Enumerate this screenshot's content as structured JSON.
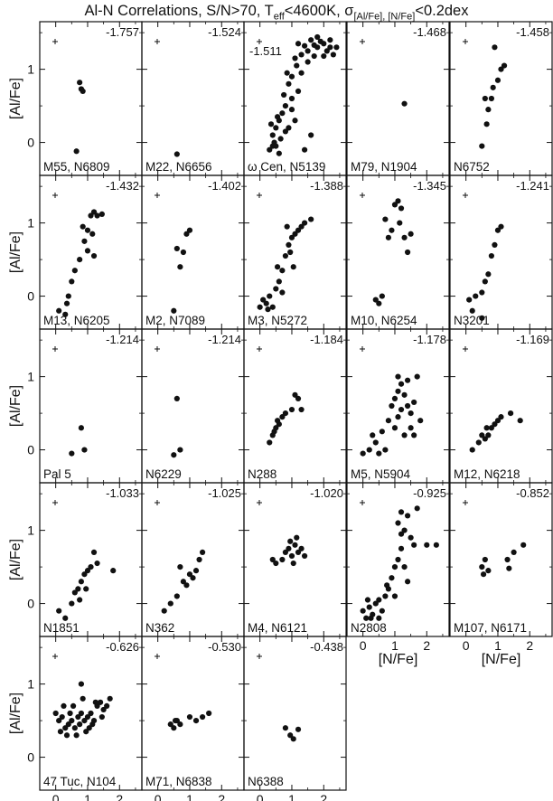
{
  "figure": {
    "title_main": "Al-N Correlations, S/N>70, T",
    "title_teff_sub": "eff",
    "title_mid": "<4600K, σ",
    "title_sigma_sub": "[Al/Fe], [N/Fe]",
    "title_end": "<0.2dex",
    "ylabel": "[Al/Fe]",
    "xlabel": "[N/Fe]",
    "xticks": [
      0,
      1,
      2
    ],
    "yticks": [
      0,
      1
    ],
    "xlim": [
      -0.5,
      2.7
    ],
    "ylim": [
      -0.45,
      1.65
    ]
  },
  "chart_data": [
    {
      "type": "scatter",
      "name": "M55, N6809",
      "label": "M55, N6809",
      "value_label": "-1.757",
      "points": [
        [
          0.75,
          0.82
        ],
        [
          0.8,
          0.73
        ],
        [
          0.85,
          0.7
        ],
        [
          0.65,
          -0.12
        ]
      ]
    },
    {
      "type": "scatter",
      "name": "M22, N6656",
      "label": "M22, N6656",
      "value_label": "-1.524",
      "points": [
        [
          0.6,
          -0.16
        ]
      ]
    },
    {
      "type": "scatter",
      "name": "ω Cen, N5139",
      "label": "ω Cen, N5139",
      "value_label": "-1.511",
      "value_position": "top-left",
      "points": [
        [
          1.2,
          1.35
        ],
        [
          1.4,
          1.32
        ],
        [
          1.6,
          1.4
        ],
        [
          1.8,
          1.3
        ],
        [
          2.0,
          1.35
        ],
        [
          2.2,
          1.4
        ],
        [
          2.4,
          1.3
        ],
        [
          1.3,
          1.2
        ],
        [
          1.5,
          1.25
        ],
        [
          1.7,
          1.33
        ],
        [
          1.9,
          1.38
        ],
        [
          2.1,
          1.25
        ],
        [
          2.3,
          1.2
        ],
        [
          1.1,
          1.15
        ],
        [
          1.0,
          0.9
        ],
        [
          0.9,
          0.8
        ],
        [
          1.0,
          0.6
        ],
        [
          0.8,
          0.5
        ],
        [
          0.7,
          0.4
        ],
        [
          0.6,
          0.3
        ],
        [
          0.5,
          0.2
        ],
        [
          0.4,
          0.1
        ],
        [
          0.45,
          0.0
        ],
        [
          0.5,
          -0.05
        ],
        [
          0.3,
          -0.1
        ],
        [
          0.6,
          -0.15
        ],
        [
          0.9,
          0.2
        ],
        [
          1.1,
          0.3
        ],
        [
          0.8,
          0.15
        ],
        [
          0.55,
          0.35
        ],
        [
          0.65,
          0.05
        ],
        [
          0.4,
          -0.05
        ],
        [
          1.0,
          0.45
        ],
        [
          1.2,
          0.7
        ],
        [
          1.3,
          0.95
        ],
        [
          1.5,
          1.1
        ],
        [
          1.4,
          -0.1
        ],
        [
          1.6,
          0.1
        ],
        [
          0.75,
          0.65
        ],
        [
          0.85,
          0.95
        ],
        [
          1.15,
          1.05
        ],
        [
          0.35,
          0.25
        ],
        [
          1.7,
          1.18
        ],
        [
          2.0,
          1.18
        ],
        [
          1.8,
          1.44
        ],
        [
          2.2,
          1.3
        ]
      ]
    },
    {
      "type": "scatter",
      "name": "M79, N1904",
      "label": "M79, N1904",
      "value_label": "-1.468",
      "points": [
        [
          1.3,
          0.53
        ]
      ]
    },
    {
      "type": "scatter",
      "name": "N6752",
      "label": "N6752",
      "value_label": "-1.458",
      "points": [
        [
          0.5,
          -0.05
        ],
        [
          0.65,
          0.25
        ],
        [
          0.7,
          0.45
        ],
        [
          0.8,
          0.6
        ],
        [
          0.85,
          0.75
        ],
        [
          1.0,
          0.85
        ],
        [
          1.1,
          1.0
        ],
        [
          0.9,
          1.3
        ],
        [
          1.2,
          1.05
        ],
        [
          0.6,
          0.6
        ]
      ]
    },
    {
      "type": "scatter",
      "name": "M13, N6205",
      "label": "M13, N6205",
      "value_label": "-1.432",
      "points": [
        [
          0.1,
          -0.2
        ],
        [
          0.3,
          -0.25
        ],
        [
          0.4,
          0.0
        ],
        [
          0.5,
          0.2
        ],
        [
          0.6,
          0.35
        ],
        [
          0.75,
          0.5
        ],
        [
          0.9,
          0.75
        ],
        [
          1.0,
          0.9
        ],
        [
          1.1,
          1.1
        ],
        [
          1.2,
          1.15
        ],
        [
          1.3,
          1.1
        ],
        [
          1.45,
          1.12
        ],
        [
          1.15,
          0.85
        ],
        [
          1.0,
          0.62
        ],
        [
          1.2,
          0.55
        ],
        [
          0.35,
          -0.1
        ],
        [
          0.85,
          0.95
        ]
      ]
    },
    {
      "type": "scatter",
      "name": "M2, N7089",
      "label": "M2, N7089",
      "value_label": "-1.402",
      "points": [
        [
          0.5,
          -0.2
        ],
        [
          0.7,
          0.4
        ],
        [
          0.8,
          0.6
        ],
        [
          0.9,
          0.85
        ],
        [
          1.0,
          0.9
        ],
        [
          0.6,
          0.65
        ]
      ]
    },
    {
      "type": "scatter",
      "name": "M3, N5272",
      "label": "M3, N5272",
      "value_label": "-1.388",
      "points": [
        [
          0.0,
          -0.15
        ],
        [
          0.2,
          -0.1
        ],
        [
          0.4,
          -0.15
        ],
        [
          0.5,
          0.1
        ],
        [
          0.6,
          0.2
        ],
        [
          0.7,
          0.35
        ],
        [
          0.8,
          0.55
        ],
        [
          0.9,
          0.7
        ],
        [
          1.0,
          0.8
        ],
        [
          1.1,
          0.85
        ],
        [
          1.2,
          0.9
        ],
        [
          1.4,
          1.0
        ],
        [
          1.6,
          1.05
        ],
        [
          0.3,
          0.0
        ],
        [
          0.55,
          0.4
        ],
        [
          0.85,
          0.95
        ],
        [
          0.95,
          0.6
        ],
        [
          1.05,
          0.4
        ],
        [
          0.1,
          -0.05
        ],
        [
          0.25,
          -0.18
        ],
        [
          0.7,
          0.05
        ],
        [
          1.3,
          0.95
        ]
      ]
    },
    {
      "type": "scatter",
      "name": "M10, N6254",
      "label": "M10, N6254",
      "value_label": "-1.345",
      "points": [
        [
          0.4,
          -0.05
        ],
        [
          0.5,
          -0.1
        ],
        [
          0.6,
          0.0
        ],
        [
          0.8,
          0.8
        ],
        [
          0.9,
          0.9
        ],
        [
          1.0,
          1.25
        ],
        [
          1.1,
          1.3
        ],
        [
          1.2,
          1.2
        ],
        [
          1.3,
          0.8
        ],
        [
          1.4,
          0.6
        ],
        [
          1.5,
          0.85
        ],
        [
          0.7,
          1.05
        ],
        [
          1.15,
          1.0
        ]
      ]
    },
    {
      "type": "scatter",
      "name": "N3201",
      "label": "N3201",
      "value_label": "-1.241",
      "points": [
        [
          0.1,
          -0.05
        ],
        [
          0.2,
          -0.2
        ],
        [
          0.3,
          0.0
        ],
        [
          0.5,
          0.05
        ],
        [
          0.6,
          0.2
        ],
        [
          0.7,
          0.3
        ],
        [
          0.8,
          0.55
        ],
        [
          0.9,
          0.7
        ],
        [
          1.0,
          0.9
        ],
        [
          1.1,
          0.95
        ],
        [
          0.5,
          -0.3
        ]
      ]
    },
    {
      "type": "scatter",
      "name": "Pal 5",
      "label": "Pal 5",
      "value_label": "-1.214",
      "points": [
        [
          0.5,
          -0.05
        ],
        [
          0.8,
          0.3
        ],
        [
          0.9,
          0.0
        ]
      ]
    },
    {
      "type": "scatter",
      "name": "N6229",
      "label": "N6229",
      "value_label": "-1.214",
      "points": [
        [
          0.5,
          -0.07
        ],
        [
          0.6,
          0.7
        ],
        [
          0.7,
          0.0
        ]
      ]
    },
    {
      "type": "scatter",
      "name": "N288",
      "label": "N288",
      "value_label": "-1.184",
      "points": [
        [
          0.3,
          0.1
        ],
        [
          0.4,
          0.2
        ],
        [
          0.5,
          0.3
        ],
        [
          0.6,
          0.35
        ],
        [
          0.7,
          0.45
        ],
        [
          0.8,
          0.5
        ],
        [
          1.0,
          0.55
        ],
        [
          1.2,
          0.7
        ],
        [
          1.3,
          0.55
        ],
        [
          1.1,
          0.75
        ],
        [
          0.45,
          0.25
        ],
        [
          0.55,
          0.4
        ]
      ]
    },
    {
      "type": "scatter",
      "name": "M5, N5904",
      "label": "M5, N5904",
      "value_label": "-1.178",
      "points": [
        [
          0.0,
          -0.05
        ],
        [
          0.2,
          0.0
        ],
        [
          0.4,
          0.1
        ],
        [
          0.6,
          0.25
        ],
        [
          0.8,
          0.4
        ],
        [
          0.9,
          0.6
        ],
        [
          1.0,
          0.7
        ],
        [
          1.1,
          0.8
        ],
        [
          1.2,
          0.9
        ],
        [
          1.3,
          0.75
        ],
        [
          1.4,
          0.6
        ],
        [
          1.5,
          0.5
        ],
        [
          1.6,
          0.2
        ],
        [
          1.7,
          1.0
        ],
        [
          1.0,
          0.3
        ],
        [
          1.2,
          0.55
        ],
        [
          0.7,
          0.0
        ],
        [
          1.3,
          0.2
        ],
        [
          0.5,
          -0.05
        ],
        [
          1.1,
          1.0
        ],
        [
          1.4,
          0.95
        ],
        [
          1.6,
          0.65
        ],
        [
          1.5,
          0.3
        ],
        [
          0.3,
          0.2
        ],
        [
          1.8,
          0.4
        ],
        [
          1.1,
          0.45
        ]
      ]
    },
    {
      "type": "scatter",
      "name": "M12, N6218",
      "label": "M12, N6218",
      "value_label": "-1.169",
      "points": [
        [
          0.2,
          0.0
        ],
        [
          0.4,
          0.1
        ],
        [
          0.6,
          0.15
        ],
        [
          0.7,
          0.2
        ],
        [
          0.8,
          0.3
        ],
        [
          0.9,
          0.35
        ],
        [
          1.0,
          0.4
        ],
        [
          1.1,
          0.45
        ],
        [
          1.4,
          0.5
        ],
        [
          1.7,
          0.4
        ],
        [
          0.5,
          0.2
        ],
        [
          0.65,
          0.3
        ]
      ]
    },
    {
      "type": "scatter",
      "name": "N1851",
      "label": "N1851",
      "value_label": "-1.033",
      "points": [
        [
          0.1,
          -0.1
        ],
        [
          0.3,
          -0.2
        ],
        [
          0.5,
          0.0
        ],
        [
          0.6,
          0.15
        ],
        [
          0.7,
          0.2
        ],
        [
          0.8,
          0.3
        ],
        [
          0.9,
          0.4
        ],
        [
          1.0,
          0.45
        ],
        [
          1.1,
          0.5
        ],
        [
          1.2,
          0.7
        ],
        [
          1.3,
          0.55
        ],
        [
          1.8,
          0.45
        ],
        [
          0.75,
          0.05
        ],
        [
          0.95,
          0.2
        ]
      ]
    },
    {
      "type": "scatter",
      "name": "N362",
      "label": "N362",
      "value_label": "-1.025",
      "points": [
        [
          0.2,
          -0.1
        ],
        [
          0.4,
          0.0
        ],
        [
          0.6,
          0.1
        ],
        [
          0.8,
          0.3
        ],
        [
          1.0,
          0.4
        ],
        [
          1.2,
          0.45
        ],
        [
          1.3,
          0.6
        ],
        [
          1.4,
          0.7
        ],
        [
          0.9,
          0.25
        ],
        [
          1.1,
          0.35
        ],
        [
          0.7,
          0.5
        ]
      ]
    },
    {
      "type": "scatter",
      "name": "M4, N6121",
      "label": "M4, N6121",
      "value_label": "-1.020",
      "points": [
        [
          0.4,
          0.6
        ],
        [
          0.5,
          0.55
        ],
        [
          0.7,
          0.6
        ],
        [
          0.8,
          0.7
        ],
        [
          0.9,
          0.75
        ],
        [
          1.0,
          0.65
        ],
        [
          1.1,
          0.8
        ],
        [
          1.2,
          0.7
        ],
        [
          1.3,
          0.75
        ],
        [
          1.4,
          0.65
        ],
        [
          0.95,
          0.85
        ],
        [
          1.05,
          0.55
        ],
        [
          1.15,
          0.9
        ]
      ]
    },
    {
      "type": "scatter",
      "name": "N2808",
      "label": "N2808",
      "value_label": "-0.925",
      "points": [
        [
          0.0,
          -0.1
        ],
        [
          0.1,
          -0.2
        ],
        [
          0.2,
          -0.05
        ],
        [
          0.3,
          -0.15
        ],
        [
          0.4,
          0.0
        ],
        [
          0.5,
          0.05
        ],
        [
          0.6,
          -0.1
        ],
        [
          0.7,
          0.1
        ],
        [
          0.8,
          0.2
        ],
        [
          0.9,
          0.35
        ],
        [
          1.0,
          0.5
        ],
        [
          1.1,
          0.6
        ],
        [
          1.2,
          0.75
        ],
        [
          1.3,
          1.0
        ],
        [
          1.4,
          1.2
        ],
        [
          1.5,
          0.9
        ],
        [
          1.6,
          0.8
        ],
        [
          1.7,
          1.3
        ],
        [
          2.0,
          0.8
        ],
        [
          2.3,
          0.8
        ],
        [
          1.3,
          0.5
        ],
        [
          1.1,
          1.1
        ],
        [
          1.4,
          0.3
        ],
        [
          1.2,
          0.95
        ],
        [
          0.15,
          0.05
        ],
        [
          0.25,
          -0.2
        ],
        [
          0.5,
          -0.2
        ],
        [
          0.75,
          0.25
        ],
        [
          1.0,
          0.1
        ],
        [
          1.2,
          1.25
        ]
      ]
    },
    {
      "type": "scatter",
      "name": "M107, N6171",
      "label": "M107, N6171",
      "value_label": "-0.852",
      "points": [
        [
          0.5,
          0.5
        ],
        [
          0.6,
          0.6
        ],
        [
          0.7,
          0.45
        ],
        [
          1.3,
          0.6
        ],
        [
          1.5,
          0.7
        ],
        [
          1.8,
          0.8
        ],
        [
          0.55,
          0.4
        ],
        [
          1.35,
          0.48
        ]
      ]
    },
    {
      "type": "scatter",
      "name": "47 Tuc, N104",
      "label": "47 Tuc, N104",
      "value_label": "-0.626",
      "points": [
        [
          0.0,
          0.6
        ],
        [
          0.1,
          0.5
        ],
        [
          0.2,
          0.55
        ],
        [
          0.3,
          0.4
        ],
        [
          0.4,
          0.45
        ],
        [
          0.5,
          0.5
        ],
        [
          0.6,
          0.4
        ],
        [
          0.7,
          0.55
        ],
        [
          0.8,
          0.6
        ],
        [
          0.9,
          0.5
        ],
        [
          1.0,
          0.55
        ],
        [
          1.1,
          0.6
        ],
        [
          1.2,
          0.5
        ],
        [
          1.3,
          0.7
        ],
        [
          1.4,
          0.75
        ],
        [
          1.5,
          0.65
        ],
        [
          1.6,
          0.7
        ],
        [
          1.7,
          0.8
        ],
        [
          0.25,
          0.7
        ],
        [
          0.55,
          0.7
        ],
        [
          0.85,
          0.8
        ],
        [
          0.95,
          0.35
        ],
        [
          0.65,
          0.3
        ],
        [
          0.35,
          0.3
        ],
        [
          0.15,
          0.35
        ],
        [
          1.05,
          0.4
        ],
        [
          1.25,
          0.75
        ],
        [
          0.8,
          1.0
        ],
        [
          1.45,
          0.55
        ],
        [
          0.75,
          0.45
        ],
        [
          0.45,
          0.6
        ],
        [
          1.15,
          0.45
        ]
      ]
    },
    {
      "type": "scatter",
      "name": "M71, N6838",
      "label": "M71, N6838",
      "value_label": "-0.530",
      "points": [
        [
          0.4,
          0.45
        ],
        [
          0.5,
          0.4
        ],
        [
          0.6,
          0.5
        ],
        [
          0.7,
          0.45
        ],
        [
          1.0,
          0.55
        ],
        [
          1.2,
          0.5
        ],
        [
          1.4,
          0.55
        ],
        [
          1.6,
          0.6
        ],
        [
          0.55,
          0.5
        ]
      ]
    },
    {
      "type": "scatter",
      "name": "N6388",
      "label": "N6388",
      "value_label": "-0.438",
      "points": [
        [
          0.8,
          0.4
        ],
        [
          0.95,
          0.3
        ],
        [
          1.05,
          0.25
        ],
        [
          1.2,
          0.38
        ]
      ]
    }
  ]
}
